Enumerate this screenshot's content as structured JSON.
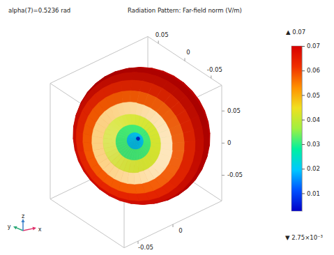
{
  "chart_data": {
    "type": "surface3d",
    "title": "Radiation Pattern: Far-field norm (V/m)",
    "subtitle": "alpha(7)=0.5236 rad",
    "xlabel": "x",
    "ylabel": "y",
    "zlabel": "z",
    "xlim": [
      -0.07,
      0.07
    ],
    "xticks": [
      -0.05,
      0
    ],
    "ylim": [
      -0.07,
      0.07
    ],
    "yticks": [
      -0.05,
      0,
      0.05
    ],
    "zlim": [
      -0.09,
      0.09
    ],
    "zticks": [
      -0.05,
      0,
      0.05
    ],
    "theta": [
      0,
      10,
      20,
      30,
      40,
      50,
      60,
      70,
      80,
      90,
      100,
      110,
      120,
      130,
      140,
      150,
      160,
      170,
      180
    ],
    "values": [
      0.00275,
      0.0135,
      0.026,
      0.037,
      0.047,
      0.055,
      0.061,
      0.066,
      0.069,
      0.07,
      0.069,
      0.066,
      0.061,
      0.055,
      0.047,
      0.037,
      0.026,
      0.0135,
      0.00275
    ],
    "colorbar": {
      "lim": [
        0.00275,
        0.07
      ],
      "ticks": [
        0.01,
        0.02,
        0.03,
        0.04,
        0.05,
        0.06,
        0.07
      ],
      "max_label": "▲ 0.07",
      "min_label": "▼ 2.75×10⁻³"
    }
  }
}
